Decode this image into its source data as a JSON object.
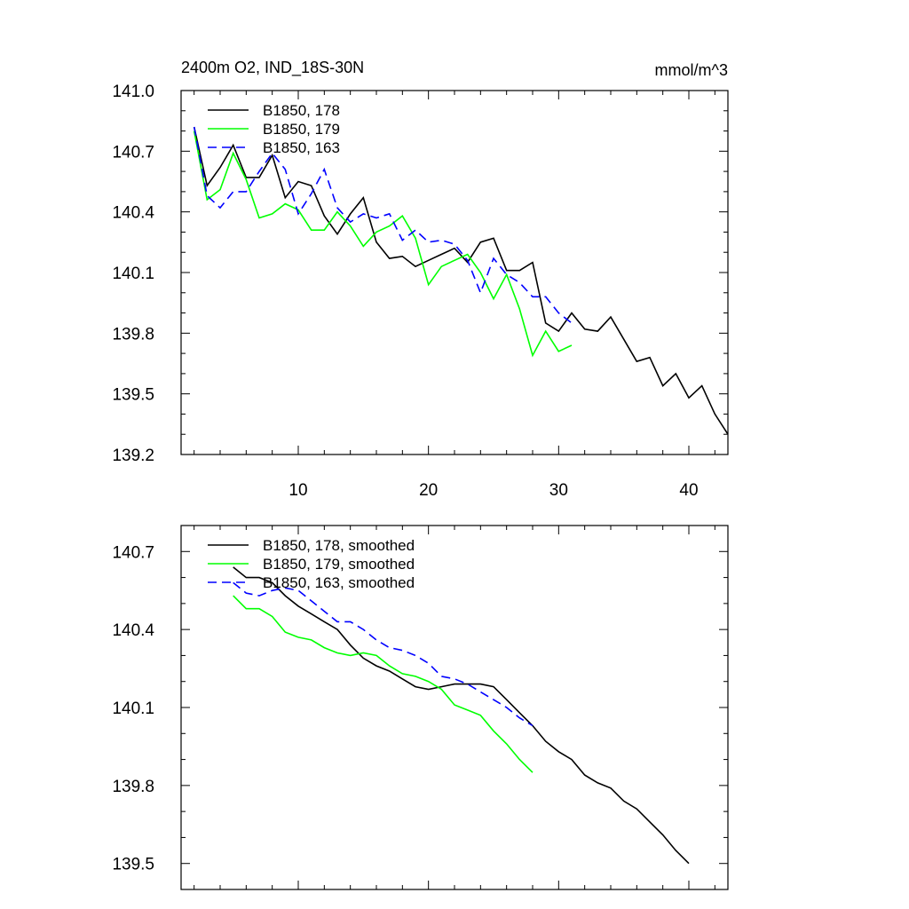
{
  "chart_data": [
    {
      "type": "line",
      "title": "2400m O2, IND_18S-30N",
      "units": "mmol/m^3",
      "xlim": [
        1,
        43
      ],
      "ylim": [
        139.2,
        141.0
      ],
      "xticks": [
        10,
        20,
        30,
        40
      ],
      "xtick_labels": [
        "10",
        "20",
        "30",
        "40"
      ],
      "yticks": [
        139.2,
        139.5,
        139.8,
        140.1,
        140.4,
        140.7,
        141.0
      ],
      "ytick_labels": [
        "139.2",
        "139.5",
        "139.8",
        "140.1",
        "140.4",
        "140.7",
        "141.0"
      ],
      "legend_position": "top-left",
      "series": [
        {
          "name": "B1850, 178",
          "color": "#000000",
          "dash": "solid",
          "x": [
            2,
            3,
            4,
            5,
            6,
            7,
            8,
            9,
            10,
            11,
            12,
            13,
            14,
            15,
            16,
            17,
            18,
            19,
            20,
            21,
            22,
            23,
            24,
            25,
            26,
            27,
            28,
            29,
            30,
            31,
            32,
            33,
            34,
            35,
            36,
            37,
            38,
            39,
            40,
            41,
            42,
            43
          ],
          "y": [
            140.82,
            140.53,
            140.62,
            140.73,
            140.57,
            140.57,
            140.68,
            140.47,
            140.55,
            140.53,
            140.38,
            140.29,
            140.39,
            140.47,
            140.25,
            140.17,
            140.18,
            140.13,
            140.16,
            140.19,
            140.22,
            140.15,
            140.25,
            140.27,
            140.11,
            140.11,
            140.15,
            139.85,
            139.81,
            139.9,
            139.82,
            139.81,
            139.88,
            139.77,
            139.66,
            139.68,
            139.54,
            139.6,
            139.48,
            139.54,
            139.4,
            139.3
          ]
        },
        {
          "name": "B1850, 179",
          "color": "#00ff00",
          "dash": "solid",
          "x": [
            2,
            3,
            4,
            5,
            6,
            7,
            8,
            9,
            10,
            11,
            12,
            13,
            14,
            15,
            16,
            17,
            18,
            19,
            20,
            21,
            22,
            23,
            24,
            25,
            26,
            27,
            28,
            29,
            30,
            31
          ],
          "y": [
            140.8,
            140.46,
            140.51,
            140.69,
            140.56,
            140.37,
            140.39,
            140.44,
            140.41,
            140.31,
            140.31,
            140.4,
            140.33,
            140.23,
            140.3,
            140.33,
            140.38,
            140.27,
            140.04,
            140.13,
            140.16,
            140.19,
            140.1,
            139.97,
            140.09,
            139.92,
            139.69,
            139.81,
            139.71,
            139.74
          ]
        },
        {
          "name": "B1850, 163",
          "color": "#0000ff",
          "dash": "dashed",
          "x": [
            2,
            3,
            4,
            5,
            6,
            7,
            8,
            9,
            10,
            11,
            12,
            13,
            14,
            15,
            16,
            17,
            18,
            19,
            20,
            21,
            22,
            23,
            24,
            25,
            26,
            27,
            28,
            29,
            30,
            31
          ],
          "y": [
            140.82,
            140.48,
            140.42,
            140.5,
            140.5,
            140.6,
            140.69,
            140.61,
            140.39,
            140.49,
            140.61,
            140.42,
            140.35,
            140.39,
            140.37,
            140.39,
            140.26,
            140.31,
            140.25,
            140.26,
            140.24,
            140.16,
            140.0,
            140.17,
            140.09,
            140.05,
            139.98,
            139.98,
            139.9,
            139.85
          ]
        }
      ]
    },
    {
      "type": "line",
      "xlim": [
        1,
        43
      ],
      "ylim": [
        139.4,
        140.8
      ],
      "xticks": [
        10,
        20,
        30,
        40
      ],
      "yticks": [
        139.5,
        139.8,
        140.1,
        140.4,
        140.7
      ],
      "ytick_labels": [
        "139.5",
        "139.8",
        "140.1",
        "140.4",
        "140.7"
      ],
      "legend_position": "top-left",
      "series": [
        {
          "name": "B1850, 178, smoothed",
          "color": "#000000",
          "dash": "solid",
          "x": [
            5,
            6,
            7,
            8,
            9,
            10,
            11,
            12,
            13,
            14,
            15,
            16,
            17,
            18,
            19,
            20,
            21,
            22,
            23,
            24,
            25,
            26,
            27,
            28,
            29,
            30,
            31,
            32,
            33,
            34,
            35,
            36,
            37,
            38,
            39,
            40
          ],
          "y": [
            140.64,
            140.6,
            140.6,
            140.58,
            140.53,
            140.49,
            140.46,
            140.43,
            140.4,
            140.34,
            140.29,
            140.26,
            140.24,
            140.21,
            140.18,
            140.17,
            140.18,
            140.19,
            140.19,
            140.19,
            140.18,
            140.13,
            140.08,
            140.03,
            139.97,
            139.93,
            139.9,
            139.84,
            139.81,
            139.79,
            139.74,
            139.71,
            139.66,
            139.61,
            139.55,
            139.5
          ]
        },
        {
          "name": "B1850, 179, smoothed",
          "color": "#00ff00",
          "dash": "solid",
          "x": [
            5,
            6,
            7,
            8,
            9,
            10,
            11,
            12,
            13,
            14,
            15,
            16,
            17,
            18,
            19,
            20,
            21,
            22,
            23,
            24,
            25,
            26,
            27,
            28
          ],
          "y": [
            140.53,
            140.48,
            140.48,
            140.45,
            140.39,
            140.37,
            140.36,
            140.33,
            140.31,
            140.3,
            140.31,
            140.3,
            140.26,
            140.23,
            140.22,
            140.2,
            140.17,
            140.11,
            140.09,
            140.07,
            140.01,
            139.96,
            139.9,
            139.85
          ]
        },
        {
          "name": "B1850, 163, smoothed",
          "color": "#0000ff",
          "dash": "dashed",
          "x": [
            5,
            6,
            7,
            8,
            9,
            10,
            11,
            12,
            13,
            14,
            15,
            16,
            17,
            18,
            19,
            20,
            21,
            22,
            23,
            24,
            25,
            26,
            27,
            28
          ],
          "y": [
            140.58,
            140.54,
            140.53,
            140.55,
            140.56,
            140.55,
            140.51,
            140.47,
            140.43,
            140.43,
            140.4,
            140.36,
            140.33,
            140.32,
            140.3,
            140.27,
            140.22,
            140.21,
            140.19,
            140.16,
            140.13,
            140.1,
            140.06,
            140.03
          ]
        }
      ]
    }
  ]
}
